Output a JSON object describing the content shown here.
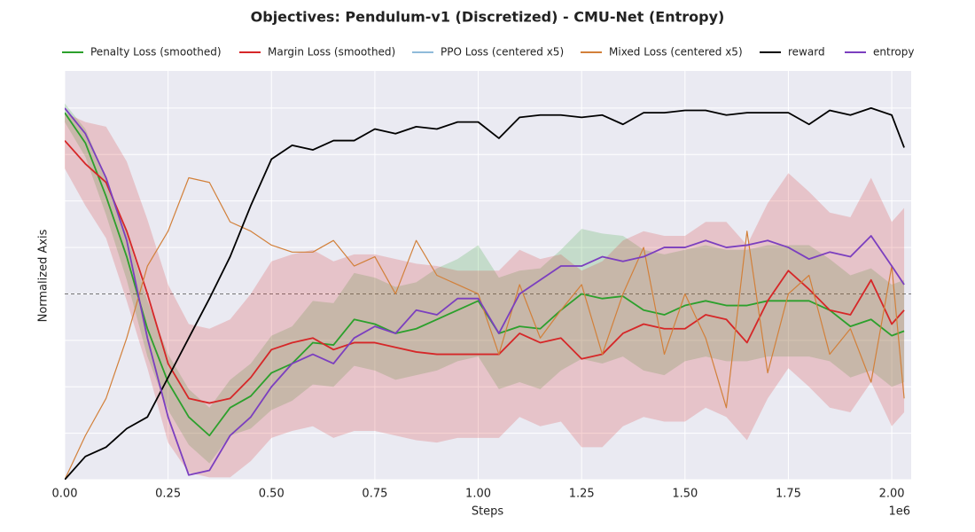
{
  "chart_data": {
    "type": "line",
    "title": "Objectives: Pendulum-v1 (Discretized) - CMU-Net (Entropy)",
    "x_label": "Steps",
    "y_label": "Normalized Axis",
    "x_offset_label": "1e6",
    "xlim": [
      0,
      2.047
    ],
    "ylim": [
      -4,
      4.8
    ],
    "xticks": [
      {
        "value": 0,
        "label": "0.00"
      },
      {
        "value": 0.25,
        "label": "0.25"
      },
      {
        "value": 0.5,
        "label": "0.50"
      },
      {
        "value": 0.75,
        "label": "0.75"
      },
      {
        "value": 1,
        "label": "1.00"
      },
      {
        "value": 1.25,
        "label": "1.25"
      },
      {
        "value": 1.5,
        "label": "1.50"
      },
      {
        "value": 1.75,
        "label": "1.75"
      },
      {
        "value": 2,
        "label": "2.00"
      }
    ],
    "ygrid": [
      -4,
      -3,
      -2,
      -1,
      0,
      1,
      2,
      3,
      4
    ],
    "hline": 0,
    "grid": true,
    "legend": "top",
    "x": [
      0,
      0.05,
      0.1,
      0.15,
      0.2,
      0.25,
      0.3,
      0.35,
      0.4,
      0.45,
      0.5,
      0.55,
      0.6,
      0.65,
      0.7,
      0.75,
      0.8,
      0.85,
      0.9,
      0.95,
      1.0,
      1.05,
      1.1,
      1.15,
      1.2,
      1.25,
      1.3,
      1.35,
      1.4,
      1.45,
      1.5,
      1.55,
      1.6,
      1.65,
      1.7,
      1.75,
      1.8,
      1.85,
      1.9,
      1.95,
      2.0,
      2.03
    ],
    "series": [
      {
        "name": "Penalty Loss (smoothed)",
        "color": "#2ca02c",
        "width": 1.8,
        "values": [
          3.9,
          3.25,
          2.1,
          0.8,
          -0.75,
          -1.9,
          -2.65,
          -3.05,
          -2.45,
          -2.2,
          -1.7,
          -1.5,
          -1.05,
          -1.1,
          -0.55,
          -0.65,
          -0.85,
          -0.75,
          -0.55,
          -0.35,
          -0.15,
          -0.85,
          -0.7,
          -0.75,
          -0.35,
          0.0,
          -0.1,
          -0.05,
          -0.35,
          -0.45,
          -0.25,
          -0.15,
          -0.25,
          -0.25,
          -0.15,
          -0.15,
          -0.15,
          -0.35,
          -0.7,
          -0.55,
          -0.9,
          -0.8
        ],
        "spread": [
          0.2,
          0.3,
          0.4,
          0.5,
          0.6,
          0.6,
          0.6,
          0.6,
          0.6,
          0.7,
          0.8,
          0.8,
          0.9,
          0.9,
          1.0,
          1.0,
          1.0,
          1.0,
          1.1,
          1.1,
          1.2,
          1.2,
          1.2,
          1.3,
          1.3,
          1.4,
          1.4,
          1.3,
          1.3,
          1.3,
          1.2,
          1.2,
          1.2,
          1.2,
          1.2,
          1.2,
          1.2,
          1.1,
          1.1,
          1.1,
          1.1,
          1.1
        ]
      },
      {
        "name": "Margin Loss (smoothed)",
        "color": "#d62728",
        "width": 1.8,
        "values": [
          3.3,
          2.8,
          2.4,
          1.35,
          0.0,
          -1.5,
          -2.25,
          -2.35,
          -2.25,
          -1.8,
          -1.2,
          -1.05,
          -0.95,
          -1.2,
          -1.05,
          -1.05,
          -1.15,
          -1.25,
          -1.3,
          -1.3,
          -1.3,
          -1.3,
          -0.85,
          -1.05,
          -0.95,
          -1.4,
          -1.3,
          -0.85,
          -0.65,
          -0.75,
          -0.75,
          -0.45,
          -0.55,
          -1.05,
          -0.15,
          0.5,
          0.1,
          -0.35,
          -0.45,
          0.3,
          -0.65,
          -0.35
        ],
        "spread": [
          0.6,
          0.9,
          1.2,
          1.5,
          1.6,
          1.7,
          1.6,
          1.6,
          1.7,
          1.8,
          1.9,
          1.9,
          1.9,
          1.9,
          1.9,
          1.9,
          1.9,
          1.9,
          1.9,
          1.8,
          1.8,
          1.8,
          1.8,
          1.8,
          1.8,
          1.9,
          2.0,
          2.0,
          2.0,
          2.0,
          2.0,
          2.0,
          2.1,
          2.1,
          2.1,
          2.1,
          2.1,
          2.1,
          2.1,
          2.2,
          2.2,
          2.2
        ]
      },
      {
        "name": "PPO Loss (centered x5)",
        "color": "#1f77b4",
        "width": 1,
        "values": [
          null,
          null,
          null,
          null,
          null,
          null,
          null,
          null,
          null,
          null,
          null,
          null,
          null,
          null,
          null,
          null,
          null,
          null,
          null,
          null,
          null,
          null,
          null,
          null,
          null,
          null,
          null,
          null,
          null,
          null,
          null,
          null,
          null,
          null,
          null,
          null,
          null,
          null,
          null,
          null,
          null,
          null
        ]
      },
      {
        "name": "Mixed Loss (centered x5)",
        "color": "#d2803a",
        "width": 1.2,
        "values": [
          -4.0,
          -3.05,
          -2.25,
          -0.95,
          0.6,
          1.35,
          2.5,
          2.4,
          1.55,
          1.35,
          1.05,
          0.9,
          0.9,
          1.15,
          0.6,
          0.8,
          0.0,
          1.15,
          0.4,
          0.2,
          0.0,
          -1.3,
          0.2,
          -0.95,
          -0.35,
          0.2,
          -1.3,
          0.0,
          1.0,
          -1.3,
          0.0,
          -0.95,
          -2.45,
          1.35,
          -1.7,
          0.0,
          0.4,
          -1.3,
          -0.75,
          -1.9,
          0.6,
          -2.25
        ]
      },
      {
        "name": "reward",
        "color": "#000000",
        "width": 1.8,
        "values": [
          -4.0,
          -3.5,
          -3.3,
          -2.9,
          -2.65,
          -1.8,
          -0.95,
          -0.1,
          0.8,
          1.9,
          2.9,
          3.2,
          3.1,
          3.3,
          3.3,
          3.55,
          3.45,
          3.6,
          3.55,
          3.7,
          3.7,
          3.35,
          3.8,
          3.85,
          3.85,
          3.8,
          3.85,
          3.65,
          3.9,
          3.9,
          3.95,
          3.95,
          3.85,
          3.9,
          3.9,
          3.9,
          3.65,
          3.95,
          3.85,
          4.0,
          3.85,
          3.15
        ]
      },
      {
        "name": "entropy",
        "color": "#7b3fbf",
        "width": 1.8,
        "values": [
          4.0,
          3.45,
          2.5,
          1.15,
          -0.95,
          -2.65,
          -3.9,
          -3.8,
          -3.05,
          -2.65,
          -2.0,
          -1.5,
          -1.3,
          -1.5,
          -0.95,
          -0.7,
          -0.85,
          -0.35,
          -0.45,
          -0.1,
          -0.1,
          -0.85,
          0.0,
          0.3,
          0.6,
          0.6,
          0.8,
          0.7,
          0.8,
          1.0,
          1.0,
          1.15,
          1.0,
          1.05,
          1.15,
          1.0,
          0.75,
          0.9,
          0.8,
          1.25,
          0.6,
          0.2
        ]
      }
    ]
  }
}
